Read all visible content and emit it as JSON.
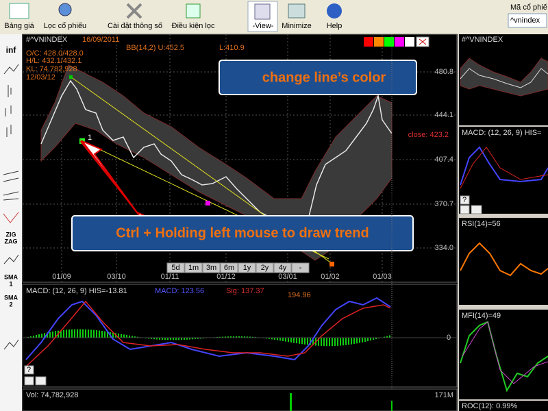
{
  "toolbar": {
    "buttons": [
      "Bảng giá",
      "Lọc cổ phiếu",
      "Cài đặt thông số",
      "Điều kiện lọc",
      "-View-",
      "Minimize",
      "Help"
    ],
    "symbol_label": "Mã cổ phiế",
    "symbol_input": "^vnindex"
  },
  "sidebar": {
    "items": [
      "inf",
      "ZIG",
      "ZAG",
      "SMA",
      "1",
      "SMA",
      "2"
    ]
  },
  "main_chart": {
    "symbol": "#^VNINDEX",
    "date": "16/09/2011",
    "bb": "BB(14,2) U:452.5",
    "bb_low": "L:410.9",
    "oc": "O/C: 428.0/428.0",
    "hl": "H/L: 432.1/432.1",
    "kl": "KL: 74,782,928",
    "cursor_date": "12/03/12",
    "yticks": [
      "480.8",
      "444.1",
      "407.4",
      "370.7",
      "334.0"
    ],
    "close": "close: 423.2",
    "xticks": [
      "01/09",
      "03/10",
      "01/11",
      "01/12",
      "03/01",
      "01/02",
      "01/03"
    ],
    "periods": [
      "5d",
      "1m",
      "3m",
      "6m",
      "1y",
      "2y",
      "4y",
      "-"
    ],
    "point_label": "1",
    "callout_color": "change line’s color",
    "callout_trend": "Ctrl + Holding left mouse to draw trend"
  },
  "macd_panel": {
    "title": "MACD: (12, 26, 9) HIS=-13.81",
    "macd": "MACD: 123.56",
    "sig": "Sig: 137.37",
    "peak": "194.96",
    "zero": "0",
    "help": "?"
  },
  "vol_panel": {
    "title": "Vol: 74,782,928",
    "max": "171M"
  },
  "right_panels": {
    "symbol": "#^VNINDEX",
    "macd": "MACD: (12, 26, 9) HIS=",
    "rsi": "RSI(14)=56",
    "mfi": "MFI(14)=49",
    "roc": "ROC(12): 0.99%",
    "help": "?"
  }
}
